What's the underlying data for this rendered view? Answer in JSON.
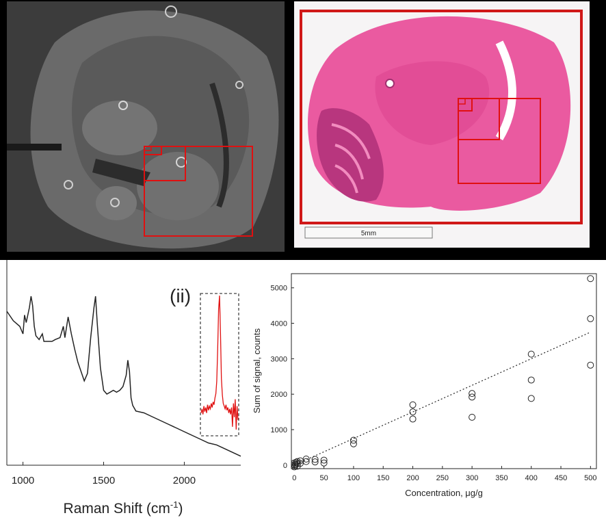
{
  "figure": {
    "panel_label_inset": "(ii)",
    "scalebar_label": "5mm",
    "highlight_color": "#e01010",
    "histology_color": "#e8509a"
  },
  "chart_data": [
    {
      "type": "line",
      "xlabel": "Raman Shift (cm",
      "xlabel_sup": "-1",
      "xlabel_tail": ")",
      "xticks": [
        1000,
        1500,
        2000
      ],
      "xlim": [
        900,
        2350
      ],
      "ylim": [
        0,
        1
      ],
      "grid": false,
      "series": [
        {
          "color": "#222222",
          "x": [
            900,
            940,
            980,
            1000,
            1010,
            1020,
            1040,
            1050,
            1060,
            1070,
            1080,
            1100,
            1120,
            1130,
            1150,
            1180,
            1200,
            1230,
            1250,
            1260,
            1280,
            1300,
            1320,
            1340,
            1360,
            1380,
            1400,
            1420,
            1440,
            1450,
            1460,
            1480,
            1500,
            1520,
            1540,
            1560,
            1580,
            1600,
            1620,
            1640,
            1650,
            1660,
            1670,
            1680,
            1700,
            1750,
            1800,
            1850,
            1900,
            1950,
            2000,
            2050,
            2100,
            2150,
            2200,
            2250,
            2300,
            2350
          ],
          "y": [
            0.8,
            0.75,
            0.72,
            0.68,
            0.78,
            0.74,
            0.82,
            0.88,
            0.83,
            0.72,
            0.67,
            0.65,
            0.68,
            0.64,
            0.64,
            0.64,
            0.65,
            0.66,
            0.72,
            0.66,
            0.77,
            0.68,
            0.6,
            0.53,
            0.48,
            0.43,
            0.47,
            0.66,
            0.82,
            0.88,
            0.74,
            0.5,
            0.38,
            0.36,
            0.37,
            0.38,
            0.37,
            0.38,
            0.4,
            0.46,
            0.54,
            0.48,
            0.34,
            0.3,
            0.27,
            0.26,
            0.24,
            0.22,
            0.2,
            0.18,
            0.16,
            0.14,
            0.12,
            0.1,
            0.09,
            0.07,
            0.05,
            0.03
          ]
        }
      ]
    },
    {
      "type": "line",
      "ylim": [
        0,
        1
      ],
      "grid": false,
      "series": [
        {
          "color": "#e01010",
          "x": [
            0,
            1,
            2,
            3,
            4,
            5,
            6,
            7,
            8,
            9,
            10,
            11,
            12,
            13,
            14,
            15,
            16,
            17,
            18,
            19,
            20,
            21,
            22,
            23,
            24,
            25,
            26,
            27,
            28,
            29,
            30,
            31,
            32,
            33,
            34,
            35,
            36,
            37,
            38,
            39,
            40
          ],
          "y": [
            0.15,
            0.18,
            0.14,
            0.2,
            0.16,
            0.19,
            0.15,
            0.21,
            0.17,
            0.2,
            0.18,
            0.22,
            0.19,
            0.23,
            0.21,
            0.26,
            0.29,
            0.38,
            0.62,
            0.9,
            1.0,
            0.72,
            0.4,
            0.28,
            0.22,
            0.2,
            0.18,
            0.21,
            0.17,
            0.19,
            0.15,
            0.18,
            0.14,
            0.19,
            0.05,
            0.22,
            0.12,
            0.25,
            0.03,
            0.2,
            0.1
          ]
        }
      ]
    },
    {
      "type": "scatter",
      "xlabel": "Concentration, μg/g",
      "ylabel": "Sum of signal, counts",
      "xlim": [
        -5,
        510
      ],
      "ylim": [
        -100,
        5400
      ],
      "xticks": [
        0,
        50,
        100,
        150,
        200,
        250,
        300,
        350,
        400,
        450,
        500
      ],
      "yticks": [
        0,
        1000,
        2000,
        3000,
        4000,
        5000
      ],
      "grid": false,
      "series": [
        {
          "marker": "circle-open",
          "x": [
            0,
            0,
            0,
            1,
            2,
            3,
            5,
            5,
            5,
            10,
            10,
            20,
            20,
            35,
            35,
            50,
            50,
            100,
            100,
            200,
            200,
            200,
            300,
            300,
            300,
            400,
            400,
            400,
            500,
            500,
            500
          ],
          "y": [
            -50,
            10,
            60,
            -20,
            20,
            80,
            -30,
            40,
            100,
            50,
            120,
            100,
            170,
            90,
            160,
            60,
            140,
            600,
            700,
            1300,
            1500,
            1700,
            1350,
            1920,
            2020,
            1880,
            2400,
            3130,
            2820,
            4130,
            5260
          ]
        }
      ],
      "trendline": {
        "x": [
          0,
          500
        ],
        "y": [
          0,
          3750
        ],
        "style": "dotted"
      }
    }
  ]
}
